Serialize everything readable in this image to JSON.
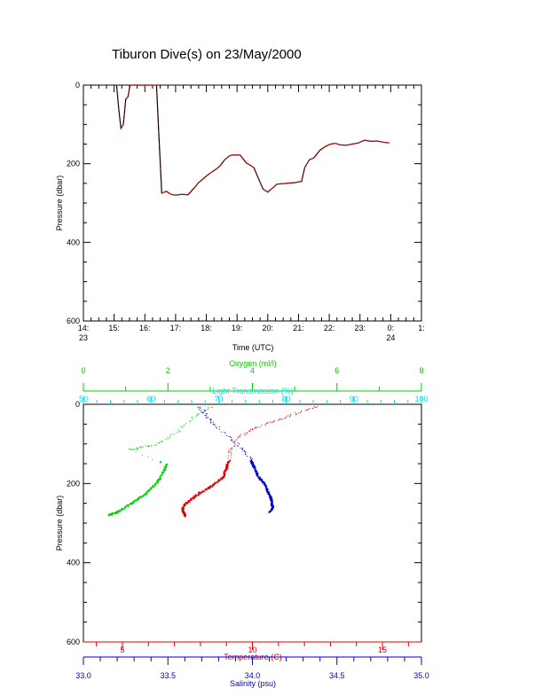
{
  "title": "Tiburon Dive(s) on 23/May/2000",
  "colors": {
    "axis": "#000000",
    "oxygen": "#00cc00",
    "transmission": "#00e5ee",
    "temperature": "#e00000",
    "salinity": "#0000cc",
    "pressure_line": "#000000",
    "pressure_dots": "#ff0000"
  },
  "chart_data": [
    {
      "type": "line",
      "xlabel": "Time (UTC)",
      "ylabel": "Pressure (dbar)",
      "ylim": [
        0,
        600
      ],
      "y_inverted": true,
      "xlim": [
        14.0,
        25.0
      ],
      "x_unit": "hours UTC from 23/May/2000 00:00",
      "x_tick_labels": [
        "14:",
        "15:",
        "16:",
        "17:",
        "18:",
        "19:",
        "20:",
        "21:",
        "22:",
        "23:",
        "0:",
        "1:"
      ],
      "x_tick_sublabels": [
        {
          "at": "14:",
          "text": "23"
        },
        {
          "at": "0:",
          "text": "24"
        }
      ],
      "y_tick_labels": [
        "0",
        "200",
        "400",
        "600"
      ],
      "series": [
        {
          "x": [
            15.08,
            15.15,
            15.22,
            15.3,
            15.38,
            15.45,
            15.52,
            15.6,
            15.8,
            16.0,
            16.2,
            16.3,
            16.38,
            16.45,
            16.55,
            16.7,
            16.85,
            17.0,
            17.2,
            17.4,
            17.6,
            17.75,
            17.9,
            18.1,
            18.3,
            18.45,
            18.6,
            18.75,
            18.85,
            18.9,
            19.1,
            19.3,
            19.45,
            19.55,
            19.7,
            19.85,
            20.0,
            20.15,
            20.3,
            20.6,
            20.9,
            21.1,
            21.2,
            21.35,
            21.5,
            21.7,
            21.9,
            22.05,
            22.2,
            22.35,
            22.55,
            22.75,
            22.95,
            23.15,
            23.35,
            23.55,
            23.75,
            23.95
          ],
          "y": [
            0,
            60,
            110,
            100,
            35,
            30,
            0,
            0,
            0,
            0,
            0,
            0,
            0,
            120,
            275,
            270,
            278,
            280,
            278,
            279,
            262,
            248,
            238,
            225,
            215,
            205,
            190,
            180,
            178,
            178,
            178,
            198,
            205,
            210,
            238,
            265,
            272,
            262,
            252,
            250,
            248,
            245,
            210,
            190,
            185,
            165,
            155,
            150,
            148,
            152,
            153,
            150,
            147,
            140,
            143,
            142,
            145,
            147
          ]
        }
      ]
    },
    {
      "type": "scatter",
      "ylabel": "Pressure (dbar)",
      "ylim": [
        0,
        600
      ],
      "y_inverted": true,
      "y_tick_labels": [
        "0",
        "200",
        "400",
        "600"
      ],
      "x_axes": [
        {
          "label": "Oxygen (ml/l)",
          "position": "top",
          "lim": [
            0,
            8
          ],
          "tick_labels": [
            "0",
            "2",
            "4",
            "6",
            "8"
          ]
        },
        {
          "label": "Light Transmission (%)",
          "position": "top",
          "lim": [
            50,
            100
          ],
          "tick_labels": [
            "50",
            "60",
            "70",
            "80",
            "90",
            "100"
          ]
        },
        {
          "label": "Temperature (C)",
          "position": "bottom",
          "lim": [
            3.5,
            16.5
          ],
          "tick_labels": [
            "5",
            "10",
            "15"
          ]
        },
        {
          "label": "Salinity (psu)",
          "position": "bottom",
          "lim": [
            33.0,
            35.0
          ],
          "tick_labels": [
            "33.0",
            "33.5",
            "34.0",
            "34.5",
            "35.0"
          ]
        }
      ],
      "series": [
        {
          "name": "Oxygen (ml/l)",
          "axis": "Oxygen (ml/l)",
          "x": [
            3.0,
            2.9,
            2.7,
            2.5,
            2.3,
            2.1,
            1.9,
            1.7,
            1.5,
            1.3,
            1.2,
            1.1,
            1.95,
            1.9,
            1.8,
            1.7,
            1.55,
            1.4,
            1.25,
            1.1,
            0.95,
            0.8,
            0.7,
            0.6
          ],
          "y": [
            5,
            15,
            25,
            40,
            60,
            75,
            90,
            100,
            105,
            110,
            112,
            113,
            150,
            165,
            185,
            200,
            215,
            230,
            240,
            250,
            260,
            270,
            275,
            278
          ]
        },
        {
          "name": "Temperature (C)",
          "axis": "Temperature (C)",
          "x": [
            12.5,
            12.2,
            11.8,
            11.5,
            11.2,
            10.9,
            10.6,
            10.3,
            10.0,
            9.8,
            9.5,
            9.3,
            9.2,
            9.1,
            9.1,
            9.0,
            9.0,
            8.9,
            8.9,
            8.7,
            8.5,
            8.3,
            8.0,
            7.8,
            7.6,
            7.4,
            7.3,
            7.3,
            7.35,
            7.4
          ],
          "y": [
            5,
            10,
            20,
            25,
            35,
            40,
            45,
            55,
            60,
            70,
            80,
            95,
            110,
            120,
            140,
            150,
            160,
            170,
            180,
            190,
            200,
            210,
            220,
            230,
            240,
            250,
            260,
            268,
            275,
            280
          ]
        },
        {
          "name": "Salinity (psu)",
          "axis": "Salinity (psu)",
          "x": [
            33.68,
            33.7,
            33.72,
            33.74,
            33.76,
            33.8,
            33.85,
            33.9,
            33.93,
            33.95,
            33.98,
            33.99,
            34.0,
            34.01,
            34.02,
            34.03,
            34.05,
            34.07,
            34.08,
            34.09,
            34.1,
            34.11,
            34.11,
            34.12,
            34.1
          ],
          "y": [
            5,
            15,
            25,
            35,
            45,
            60,
            80,
            95,
            110,
            120,
            135,
            145,
            150,
            160,
            170,
            180,
            190,
            200,
            210,
            220,
            230,
            240,
            250,
            260,
            270
          ]
        }
      ]
    }
  ]
}
